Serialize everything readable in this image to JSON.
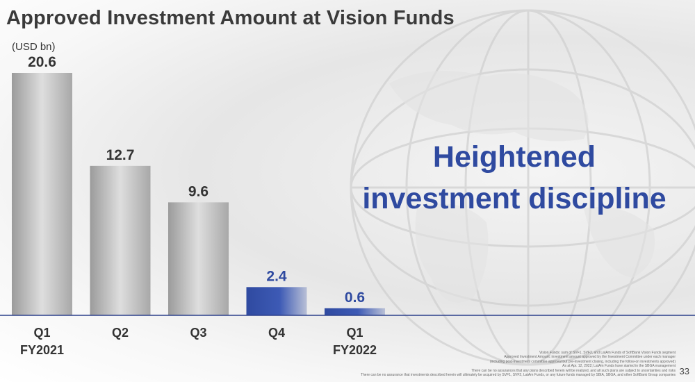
{
  "slide": {
    "title": "Approved Investment Amount at Vision Funds",
    "unit": "(USD bn)",
    "headline_line1": "Heightened",
    "headline_line2": "investment discipline",
    "footnotes": [
      "Vision Funds: sum of SVF1, SVF2, and LatAm Funds of SoftBank Vision Funds segment",
      "Approved Investment Amount: investment amount approved by the Investment Committee under each manager",
      "(including post-investment committee approval but pre-investment closing, including the follow-on investments approved)",
      "As at Apr. 12, 2022; LatAm Funds have started in the SBGA management",
      "There can be no assurances that any plans described herein will be realized, and all such plans are subject to uncertainties and risks",
      "There can be no assurance that investments described herein will ultimately be acquired by SVF1, SVF2, LatAm Funds, or any future funds managed by SBIA, SBGA, and other SoftBank Group companies"
    ],
    "page_number": "33",
    "colors": {
      "grey_bar_light": "#dedede",
      "grey_bar_dark": "#9b9b9b",
      "blue_bar": "#2f4aa0",
      "headline": "#2f4aa0",
      "baseline": "#2b3f8a"
    }
  },
  "chart_data": {
    "type": "bar",
    "categories": [
      [
        "Q1",
        "FY2021"
      ],
      [
        "Q2"
      ],
      [
        "Q3"
      ],
      [
        "Q4"
      ],
      [
        "Q1",
        "FY2022"
      ]
    ],
    "values": [
      20.6,
      12.7,
      9.6,
      2.4,
      0.6
    ],
    "data_labels": [
      "20.6",
      "12.7",
      "9.6",
      "2.4",
      "0.6"
    ],
    "bar_style": [
      "grey",
      "grey",
      "grey",
      "blue",
      "blue"
    ],
    "ylabel": "(USD bn)",
    "ylim": [
      0,
      20.6
    ],
    "grid": false,
    "legend": "none"
  }
}
